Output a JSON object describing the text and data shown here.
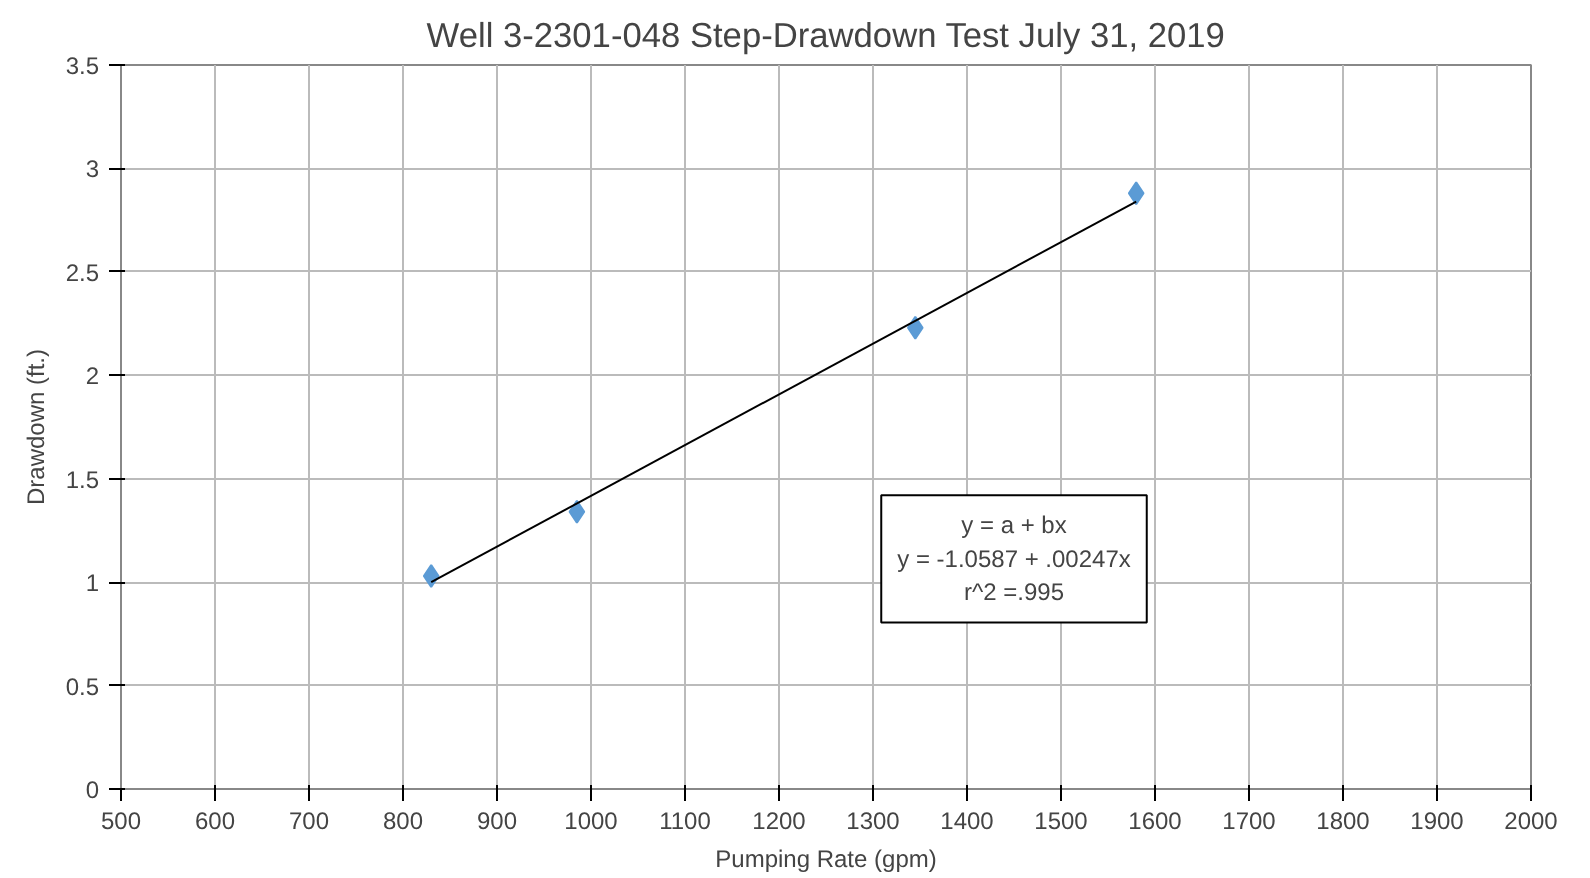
{
  "chart_data": {
    "type": "scatter",
    "title": "Well 3-2301-048 Step-Drawdown Test July 31, 2019",
    "xlabel": "Pumping Rate (gpm)",
    "ylabel": "Drawdown (ft.)",
    "xlim": [
      500,
      2000
    ],
    "ylim": [
      0,
      3.5
    ],
    "xticks": [
      500,
      600,
      700,
      800,
      900,
      1000,
      1100,
      1200,
      1300,
      1400,
      1500,
      1600,
      1700,
      1800,
      1900,
      2000
    ],
    "yticks": [
      0,
      {
        "value": 0.5,
        "label": "0.5"
      },
      1,
      {
        "value": 1.5,
        "label": "1.5"
      },
      2,
      {
        "value": 2.5,
        "label": "2.5"
      },
      3,
      {
        "value": 3.5,
        "label": "3.5"
      }
    ],
    "grid": true,
    "series": [
      {
        "marker": "diamond",
        "color": "#5b9bd5",
        "x": [
          830,
          985,
          1345,
          1580
        ],
        "values": [
          1.03,
          1.34,
          2.23,
          2.88
        ]
      },
      {
        "type": "line",
        "marker": "none",
        "color": "#000000",
        "x": [
          830,
          1580
        ],
        "values": [
          1.0,
          2.84
        ]
      }
    ],
    "annotations": [
      "y = a + bx",
      "y = -1.0587 + .00247x",
      "r^2 =.995"
    ]
  }
}
